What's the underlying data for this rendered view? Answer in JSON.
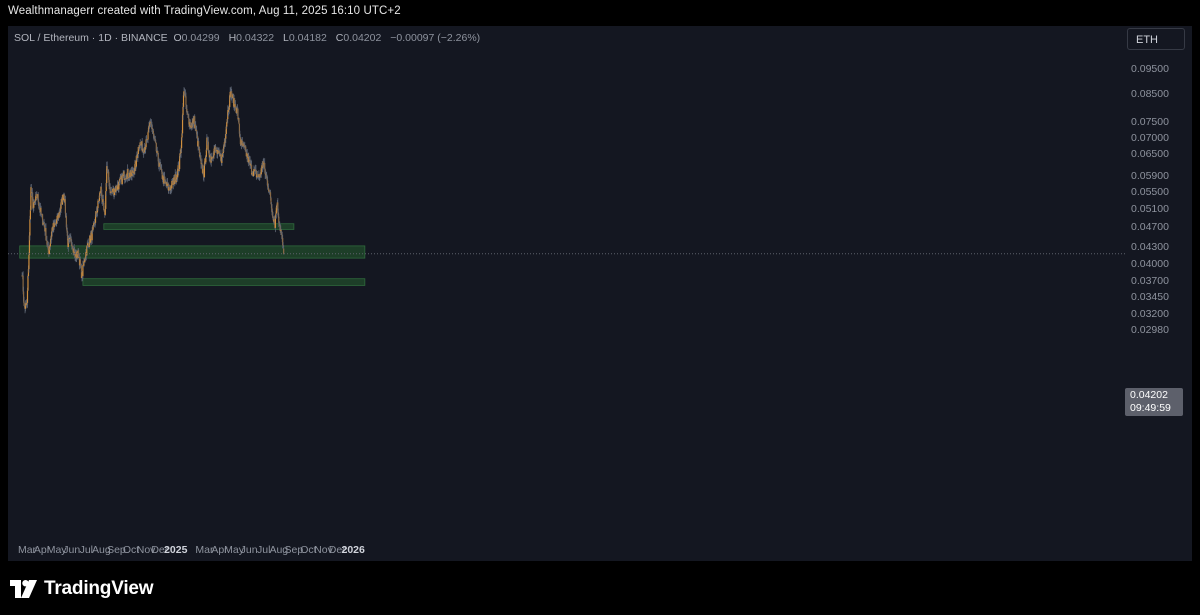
{
  "caption": "Wealthmanagerr created with TradingView.com, Aug 11, 2025 16:10 UTC+2",
  "legend": {
    "symbol": "SOL / Ethereum · 1D · BINANCE",
    "open_label": "O",
    "open": "0.04299",
    "high_label": "H",
    "high": "0.04322",
    "low_label": "L",
    "low": "0.04182",
    "close_label": "C",
    "close": "0.04202",
    "change": "−0.00097 (−2.26%)"
  },
  "currency_badge": "ETH",
  "last_price": {
    "value": "0.04202",
    "countdown": "09:49:59"
  },
  "brand": "TradingView",
  "colors": {
    "background": "#141721",
    "candle": "#d08f3e",
    "wick": "#5d6472",
    "zone": "#1f4529",
    "zone_border": "#2f6a3c"
  },
  "chart_data": {
    "type": "candlestick",
    "scale": "log",
    "yticks": [
      "0.09500",
      "0.08500",
      "0.07500",
      "0.07000",
      "0.06500",
      "0.05900",
      "0.05500",
      "0.05100",
      "0.04700",
      "0.04300",
      "0.04000",
      "0.03700",
      "0.03450",
      "0.03200",
      "0.02980"
    ],
    "xticks": [
      "Mar",
      "Apr",
      "May",
      "Jun",
      "Jul",
      "Aug",
      "Sep",
      "Oct",
      "Nov",
      "Dec",
      "2025",
      "Mar",
      "Apr",
      "May",
      "Jun",
      "Jul",
      "Aug",
      "Sep",
      "Oct",
      "Nov",
      "Dec",
      "2026"
    ],
    "anchors": [
      [
        "2024-02-20",
        0.039
      ],
      [
        "2024-02-24",
        0.033
      ],
      [
        "2024-03-01",
        0.0335
      ],
      [
        "2024-03-05",
        0.042
      ],
      [
        "2024-03-09",
        0.056
      ],
      [
        "2024-03-14",
        0.0515
      ],
      [
        "2024-03-22",
        0.0545
      ],
      [
        "2024-03-30",
        0.05
      ],
      [
        "2024-04-07",
        0.047
      ],
      [
        "2024-04-14",
        0.042
      ],
      [
        "2024-04-22",
        0.047
      ],
      [
        "2024-04-30",
        0.048
      ],
      [
        "2024-05-08",
        0.051
      ],
      [
        "2024-05-16",
        0.0555
      ],
      [
        "2024-05-24",
        0.044
      ],
      [
        "2024-06-01",
        0.0445
      ],
      [
        "2024-06-08",
        0.0415
      ],
      [
        "2024-06-15",
        0.042
      ],
      [
        "2024-06-22",
        0.038
      ],
      [
        "2024-06-28",
        0.0415
      ],
      [
        "2024-07-05",
        0.044
      ],
      [
        "2024-07-14",
        0.046
      ],
      [
        "2024-07-22",
        0.0505
      ],
      [
        "2024-07-31",
        0.056
      ],
      [
        "2024-08-08",
        0.049
      ],
      [
        "2024-08-12",
        0.062
      ],
      [
        "2024-08-20",
        0.055
      ],
      [
        "2024-08-30",
        0.056
      ],
      [
        "2024-09-08",
        0.0575
      ],
      [
        "2024-09-16",
        0.0595
      ],
      [
        "2024-09-24",
        0.06
      ],
      [
        "2024-10-02",
        0.0595
      ],
      [
        "2024-10-10",
        0.062
      ],
      [
        "2024-10-18",
        0.069
      ],
      [
        "2024-10-26",
        0.067
      ],
      [
        "2024-11-03",
        0.069
      ],
      [
        "2024-11-10",
        0.076
      ],
      [
        "2024-11-16",
        0.071
      ],
      [
        "2024-11-24",
        0.065
      ],
      [
        "2024-12-02",
        0.06
      ],
      [
        "2024-12-10",
        0.0575
      ],
      [
        "2024-12-18",
        0.056
      ],
      [
        "2024-12-24",
        0.057
      ],
      [
        "2025-01-01",
        0.059
      ],
      [
        "2025-01-08",
        0.062
      ],
      [
        "2025-01-13",
        0.07
      ],
      [
        "2025-01-18",
        0.088
      ],
      [
        "2025-01-24",
        0.078
      ],
      [
        "2025-02-01",
        0.074
      ],
      [
        "2025-02-08",
        0.076
      ],
      [
        "2025-02-16",
        0.068
      ],
      [
        "2025-02-22",
        0.062
      ],
      [
        "2025-02-28",
        0.06
      ],
      [
        "2025-03-06",
        0.069
      ],
      [
        "2025-03-14",
        0.064
      ],
      [
        "2025-03-22",
        0.067
      ],
      [
        "2025-03-30",
        0.065
      ],
      [
        "2025-04-06",
        0.064
      ],
      [
        "2025-04-12",
        0.07
      ],
      [
        "2025-04-18",
        0.079
      ],
      [
        "2025-04-24",
        0.086
      ],
      [
        "2025-05-01",
        0.082
      ],
      [
        "2025-05-08",
        0.079
      ],
      [
        "2025-05-14",
        0.069
      ],
      [
        "2025-05-22",
        0.067
      ],
      [
        "2025-05-30",
        0.064
      ],
      [
        "2025-06-06",
        0.061
      ],
      [
        "2025-06-14",
        0.06
      ],
      [
        "2025-06-22",
        0.059
      ],
      [
        "2025-06-30",
        0.063
      ],
      [
        "2025-07-06",
        0.059
      ],
      [
        "2025-07-12",
        0.056
      ],
      [
        "2025-07-18",
        0.051
      ],
      [
        "2025-07-24",
        0.048
      ],
      [
        "2025-07-28",
        0.053
      ],
      [
        "2025-08-01",
        0.049
      ],
      [
        "2025-08-05",
        0.0465
      ],
      [
        "2025-08-08",
        0.0445
      ],
      [
        "2025-08-11",
        0.04202
      ]
    ],
    "support_zones": [
      {
        "from": "2024-08-06",
        "to": "2025-09-01",
        "low": 0.0468,
        "high": 0.048
      },
      {
        "from": "2024-02-15",
        "to": "2026-01-25",
        "low": 0.0412,
        "high": 0.0435
      },
      {
        "from": "2024-06-24",
        "to": "2026-01-25",
        "low": 0.0365,
        "high": 0.0376
      }
    ]
  }
}
